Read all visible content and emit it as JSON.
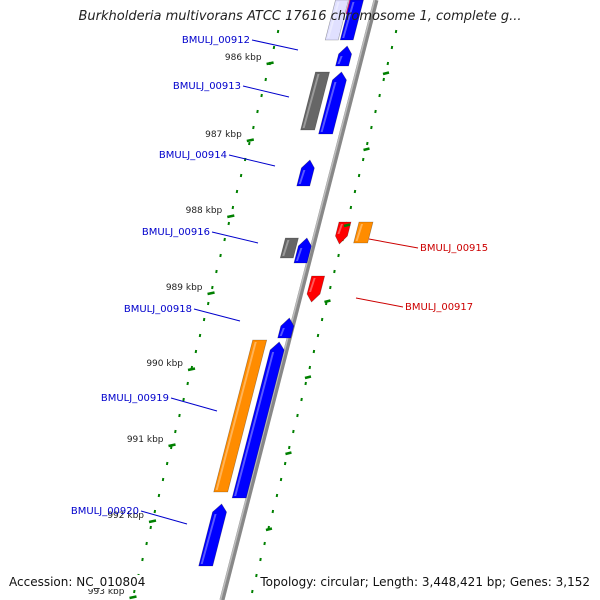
{
  "title": "Burkholderia multivorans ATCC 17616 chromosome 1, complete g...",
  "footer": {
    "accession": "Accession: NC_010804",
    "summary": "Topology: circular; Length: 3,448,421 bp; Genes: 3,152"
  },
  "colors": {
    "forward_cds": "#0000ff",
    "reverse_cds": "#ff0000",
    "orange_feature": "#ff8c00",
    "gray_feature": "#666666",
    "pink_feature": "#ff1493",
    "backbone": "#888888",
    "tick": "#008000",
    "label_forward": "#0000cc",
    "label_reverse": "#cc0000"
  },
  "ticks": [
    {
      "label": "986 kbp"
    },
    {
      "label": "987 kbp"
    },
    {
      "label": "988 kbp"
    },
    {
      "label": "989 kbp"
    },
    {
      "label": "990 kbp"
    },
    {
      "label": "991 kbp"
    },
    {
      "label": "992 kbp"
    },
    {
      "label": "993 kbp"
    }
  ],
  "genes": [
    {
      "id": "BMULJ_00912",
      "strand": "left"
    },
    {
      "id": "BMULJ_00913",
      "strand": "left"
    },
    {
      "id": "BMULJ_00914",
      "strand": "left"
    },
    {
      "id": "BMULJ_00916",
      "strand": "left"
    },
    {
      "id": "BMULJ_00915",
      "strand": "right"
    },
    {
      "id": "BMULJ_00917",
      "strand": "right"
    },
    {
      "id": "BMULJ_00918",
      "strand": "left"
    },
    {
      "id": "BMULJ_00919",
      "strand": "left"
    },
    {
      "id": "BMULJ_00920",
      "strand": "left"
    }
  ]
}
